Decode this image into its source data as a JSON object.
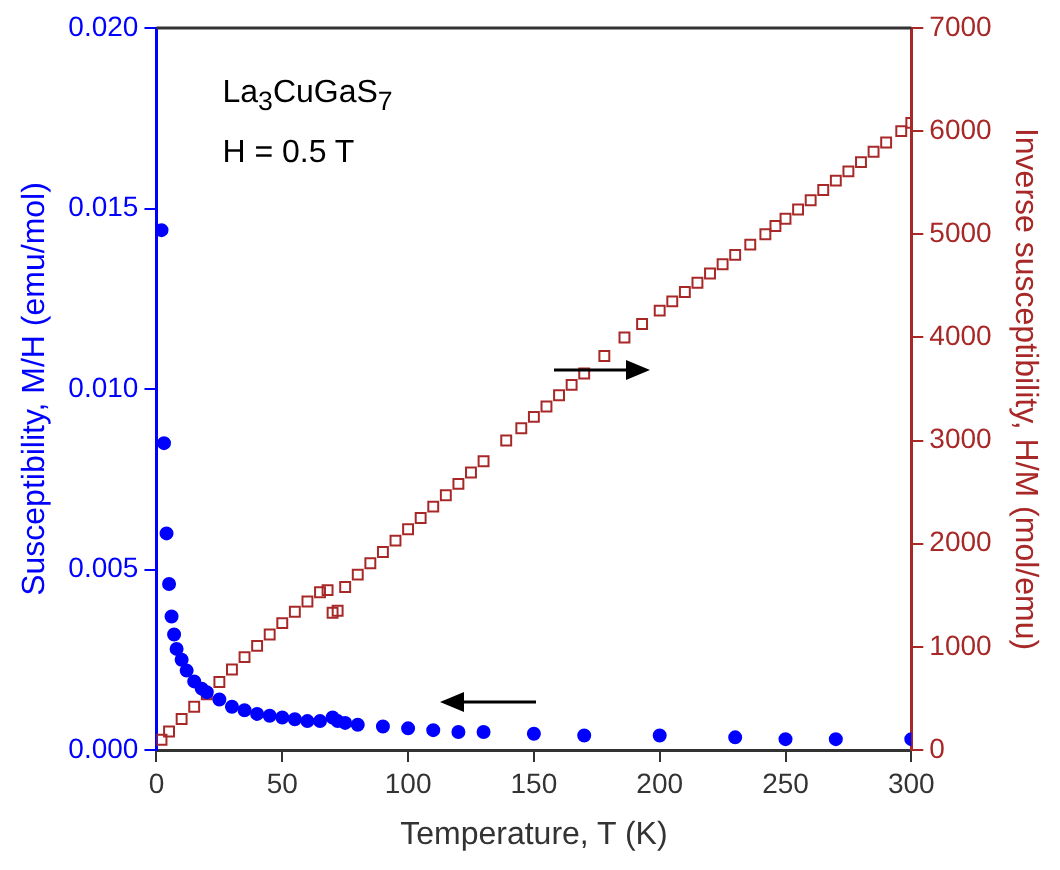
{
  "chart_data": {
    "type": "scatter",
    "xlabel": "Temperature, T (K)",
    "ylabel": "Susceptibility, M/H (emu/mol)",
    "y2label": "Inverse susceptibility, H/M (mol/emu)",
    "annotations": [
      "La$_{3}$CuGaS$_{7}$",
      "H = 0.5 T"
    ],
    "xlim": [
      0,
      300
    ],
    "xticks": [
      0,
      50,
      100,
      150,
      200,
      250,
      300
    ],
    "ylim": [
      0,
      0.02
    ],
    "yticks": [
      {
        "value": 0,
        "label": "0.000"
      },
      {
        "value": 0.005,
        "label": "0.005"
      },
      {
        "value": 0.01,
        "label": "0.010"
      },
      {
        "value": 0.015,
        "label": "0.015"
      },
      {
        "value": 0.02,
        "label": "0.020"
      }
    ],
    "y2lim": [
      0,
      7000
    ],
    "y2ticks": [
      0,
      1000,
      2000,
      3000,
      4000,
      5000,
      6000,
      7000
    ],
    "legend": false,
    "grid": false,
    "series": [
      {
        "color": "#0000ff",
        "marker": "circle",
        "axis": "y",
        "x": [
          2,
          3,
          4,
          5,
          6,
          7,
          8,
          10,
          12,
          15,
          18,
          20,
          25,
          30,
          35,
          40,
          45,
          50,
          55,
          60,
          65,
          70,
          72,
          75,
          80,
          90,
          100,
          110,
          120,
          130,
          150,
          170,
          200,
          230,
          250,
          270,
          300
        ],
        "values": [
          0.0144,
          0.0085,
          0.006,
          0.0046,
          0.0037,
          0.0032,
          0.0028,
          0.0025,
          0.0022,
          0.0019,
          0.0017,
          0.0016,
          0.0014,
          0.0012,
          0.0011,
          0.001,
          0.00095,
          0.0009,
          0.00085,
          0.0008,
          0.0008,
          0.0009,
          0.0008,
          0.00075,
          0.0007,
          0.00065,
          0.0006,
          0.00055,
          0.0005,
          0.0005,
          0.00045,
          0.0004,
          0.0004,
          0.00035,
          0.0003,
          0.0003,
          0.0003
        ]
      },
      {
        "color": "#a82828",
        "marker": "square",
        "axis": "y2",
        "x": [
          2,
          5,
          10,
          15,
          20,
          25,
          30,
          35,
          40,
          45,
          50,
          55,
          60,
          65,
          68,
          70,
          72,
          75,
          80,
          85,
          90,
          95,
          100,
          105,
          110,
          115,
          120,
          125,
          130,
          139,
          145,
          150,
          155,
          160,
          165,
          170,
          178,
          186,
          193,
          200,
          205,
          210,
          215,
          220,
          225,
          230,
          236,
          242,
          246,
          250,
          255,
          260,
          265,
          270,
          275,
          280,
          285,
          290,
          296,
          300
        ],
        "values": [
          100,
          180,
          300,
          420,
          540,
          660,
          780,
          900,
          1010,
          1120,
          1230,
          1340,
          1440,
          1530,
          1550,
          1330,
          1350,
          1580,
          1700,
          1810,
          1920,
          2030,
          2140,
          2250,
          2360,
          2470,
          2580,
          2690,
          2800,
          3000,
          3120,
          3230,
          3330,
          3440,
          3540,
          3650,
          3820,
          4000,
          4130,
          4260,
          4350,
          4440,
          4530,
          4620,
          4710,
          4800,
          4900,
          5000,
          5080,
          5150,
          5240,
          5330,
          5430,
          5520,
          5610,
          5700,
          5800,
          5890,
          6000,
          6080
        ]
      }
    ]
  }
}
